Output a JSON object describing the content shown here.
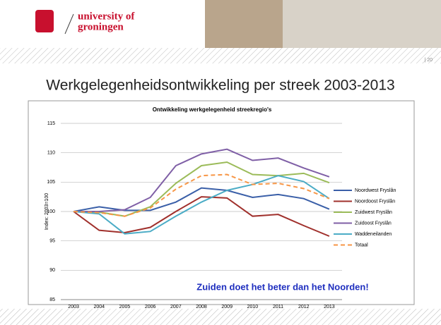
{
  "slide": {
    "logo": [
      "university of",
      "groningen"
    ],
    "page_number": "| 20",
    "title": "Werkgelegenheidsontwikkeling per streek 2003-2013"
  },
  "chart_data": {
    "type": "line",
    "title": "Ontwikkeling werkgelegenheid streekregio's",
    "y_label": "Index: 2003=100",
    "categories": [
      "2003",
      "2004",
      "2005",
      "2006",
      "2007",
      "2008",
      "2009",
      "2010",
      "2011",
      "2012",
      "2013"
    ],
    "ylim": [
      85,
      115
    ],
    "yticks": [
      85,
      90,
      95,
      100,
      105,
      110,
      115
    ],
    "grid": true,
    "legend": "right",
    "annotation": "Zuiden doet het beter dan het Noorden!",
    "series": [
      {
        "name": "Noordwest Fryslân",
        "color": "#3a5fa8",
        "values": [
          100,
          100.8,
          100.2,
          100.2,
          101.6,
          104,
          103.6,
          102.4,
          102.9,
          102.2,
          100.4
        ]
      },
      {
        "name": "Noordoost Fryslân",
        "color": "#a0302c",
        "values": [
          100,
          96.8,
          96.4,
          97.3,
          100,
          102.5,
          102.3,
          99.2,
          99.5,
          97.6,
          95.8
        ]
      },
      {
        "name": "Zuidwest Fryslân",
        "color": "#9bbb59",
        "values": [
          100,
          99.9,
          99.2,
          100.8,
          104.8,
          107.8,
          108.4,
          106.3,
          106.1,
          106.5,
          104.9
        ]
      },
      {
        "name": "Zuidoost Fryslân",
        "color": "#7f5fa6",
        "values": [
          100,
          100,
          100.3,
          102.4,
          107.8,
          109.8,
          110.6,
          108.7,
          109.1,
          107.4,
          105.9
        ]
      },
      {
        "name": "Waddeneilanden",
        "color": "#4bacc6",
        "values": [
          100,
          99.6,
          96.2,
          96.6,
          99.2,
          101.6,
          103.6,
          104.6,
          106.1,
          105.1,
          102.2
        ]
      },
      {
        "name": "Totaal",
        "color": "#f79646",
        "dash": true,
        "values": [
          100,
          99.8,
          99.2,
          100.6,
          103.8,
          106.1,
          106.3,
          104.6,
          104.8,
          103.9,
          102.2
        ]
      }
    ]
  }
}
